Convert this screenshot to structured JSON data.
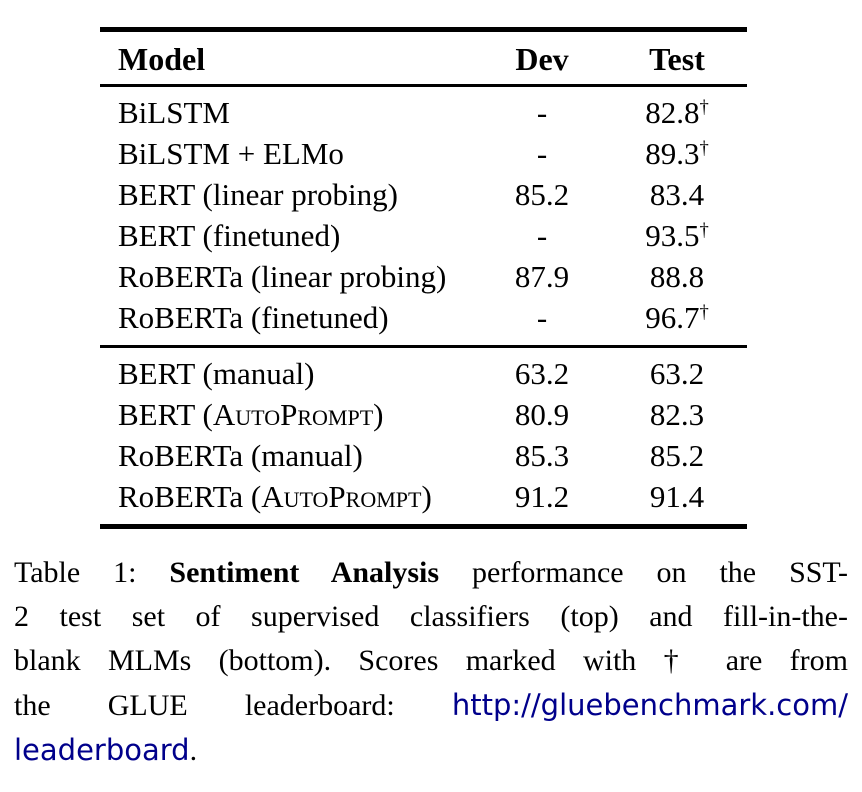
{
  "table": {
    "header": {
      "model": "Model",
      "dev": "Dev",
      "test": "Test"
    },
    "sections": [
      {
        "rows": [
          {
            "model_prefix": "BiLSTM",
            "model_sc": "",
            "model_suffix": "",
            "dev": "-",
            "test": "82.8",
            "dagger": "†"
          },
          {
            "model_prefix": "BiLSTM + ELMo",
            "model_sc": "",
            "model_suffix": "",
            "dev": "-",
            "test": "89.3",
            "dagger": "†"
          },
          {
            "model_prefix": "BERT (linear probing)",
            "model_sc": "",
            "model_suffix": "",
            "dev": "85.2",
            "test": "83.4",
            "dagger": ""
          },
          {
            "model_prefix": "BERT (finetuned)",
            "model_sc": "",
            "model_suffix": "",
            "dev": "-",
            "test": "93.5",
            "dagger": "†"
          },
          {
            "model_prefix": "RoBERTa (linear probing)",
            "model_sc": "",
            "model_suffix": "",
            "dev": "87.9",
            "test": "88.8",
            "dagger": ""
          },
          {
            "model_prefix": "RoBERTa (finetuned)",
            "model_sc": "",
            "model_suffix": "",
            "dev": "-",
            "test": "96.7",
            "dagger": "†"
          }
        ]
      },
      {
        "rows": [
          {
            "model_prefix": "BERT (manual)",
            "model_sc": "",
            "model_suffix": "",
            "dev": "63.2",
            "test": "63.2",
            "dagger": ""
          },
          {
            "model_prefix": "BERT (",
            "model_sc": "AutoPrompt",
            "model_suffix": ")",
            "dev": "80.9",
            "test": "82.3",
            "dagger": ""
          },
          {
            "model_prefix": "RoBERTa (manual)",
            "model_sc": "",
            "model_suffix": "",
            "dev": "85.3",
            "test": "85.2",
            "dagger": ""
          },
          {
            "model_prefix": "RoBERTa (",
            "model_sc": "AutoPrompt",
            "model_suffix": ")",
            "dev": "91.2",
            "test": "91.4",
            "dagger": ""
          }
        ]
      }
    ]
  },
  "caption": {
    "l1a": "Table 1: ",
    "l1b": "Sentiment Analysis",
    "l1c": " performance on the SST-",
    "l2": "2 test set of supervised classifiers (top) and fill-in-the-",
    "l3": "blank MLMs (bottom). Scores marked with † are from",
    "l4a": "the GLUE leaderboard: ",
    "l4b": "http://gluebenchmark.com/",
    "l5a": "leaderboard",
    "l5b": "."
  },
  "colors": {
    "text": "#000000",
    "rule": "#000000",
    "link": "#00008B"
  }
}
